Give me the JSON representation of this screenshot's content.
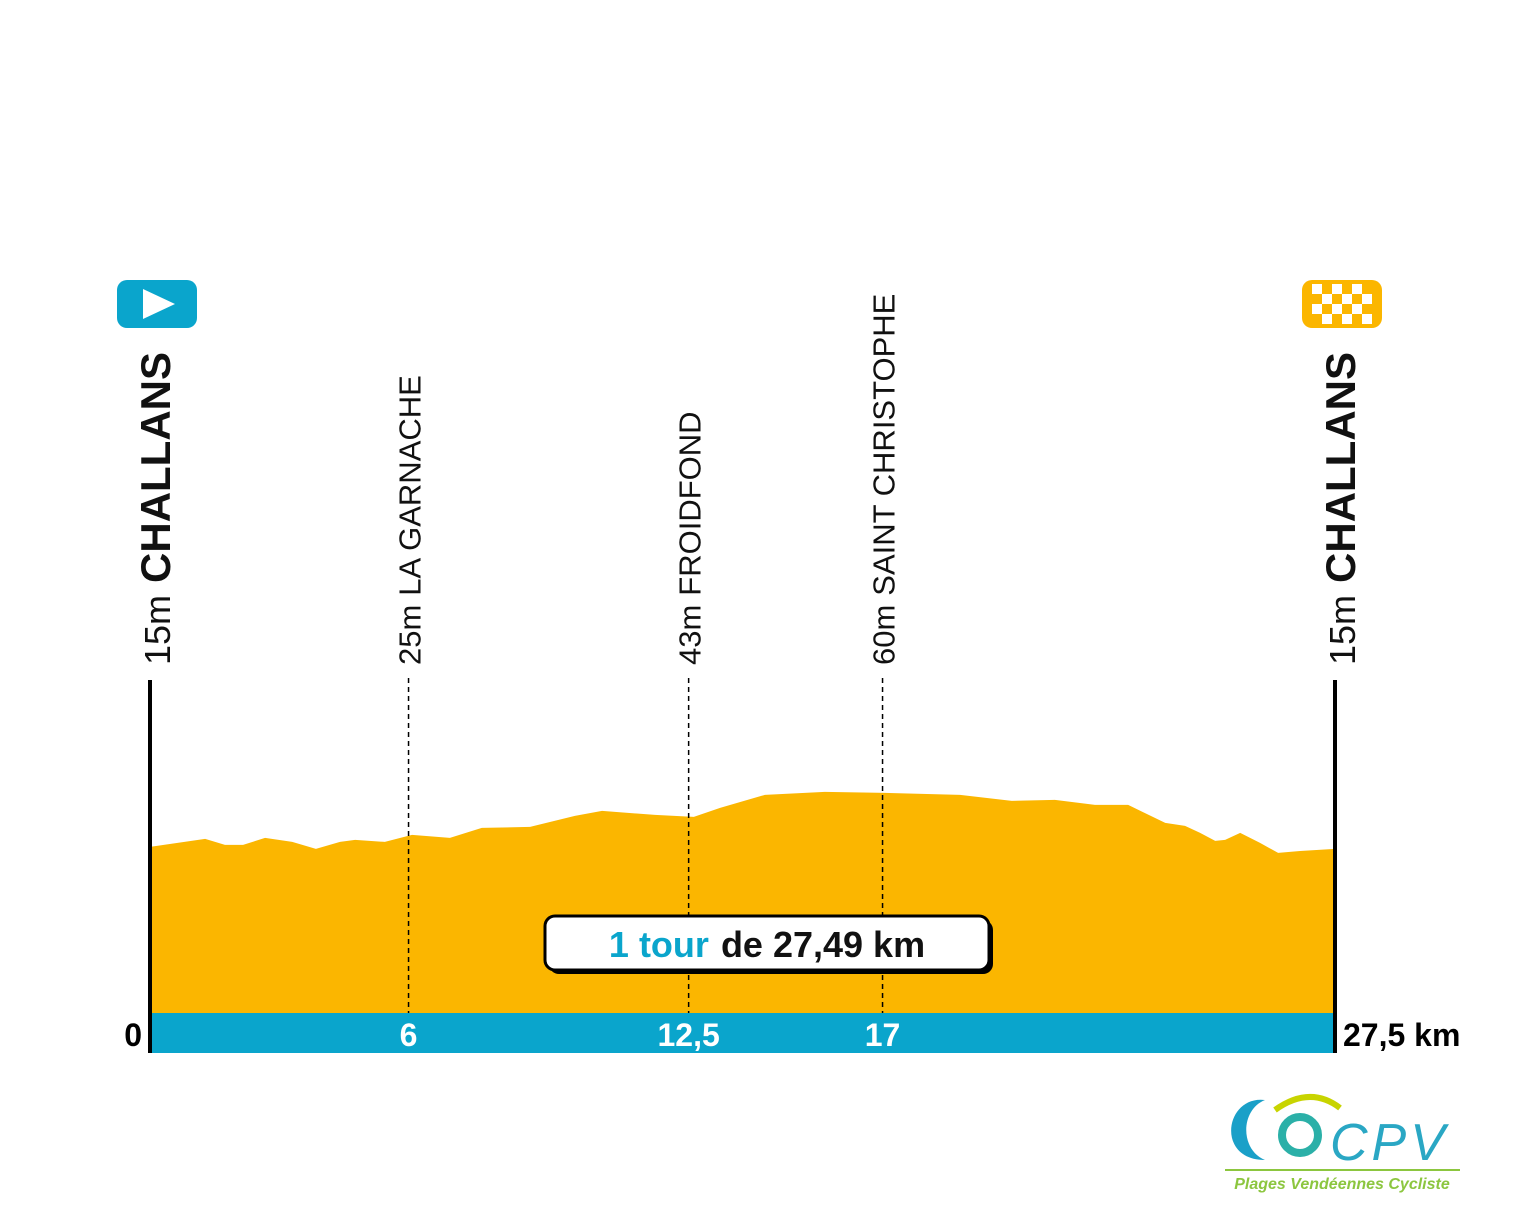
{
  "chart_data": {
    "type": "area",
    "xlim": [
      0,
      27.5
    ],
    "ylim": [
      -130,
      170
    ],
    "color": "#fbb600",
    "bar_color": "#0aa5cc",
    "x": [
      0,
      1.28,
      1.74,
      2.16,
      2.67,
      3.3,
      3.85,
      4.41,
      4.76,
      5.45,
      6.08,
      6.96,
      7.7,
      8.82,
      9.86,
      10.49,
      11.72,
      12.62,
      13.23,
      14.27,
      15.66,
      17.06,
      18.8,
      20.0,
      21.0,
      21.93,
      22.7,
      23.56,
      24.02,
      24.37,
      24.72,
      24.95,
      25.3,
      25.76,
      26.18,
      26.69,
      27.5
    ],
    "values": [
      13.6,
      20.5,
      15.3,
      15.3,
      21.4,
      17.9,
      11.9,
      17.9,
      19.7,
      17.9,
      24.0,
      21.4,
      30.0,
      30.9,
      40.4,
      44.7,
      41.3,
      39.6,
      47.3,
      58.6,
      61.2,
      60.3,
      58.6,
      53.4,
      54.3,
      49.9,
      49.9,
      34.4,
      31.8,
      25.7,
      18.8,
      19.7,
      25.7,
      17.1,
      8.4,
      10.1,
      11.9
    ],
    "waypoints": [
      {
        "km": 0,
        "elevation_label": "15m",
        "name": "CHALLANS"
      },
      {
        "km": 6,
        "elevation_label": "25m",
        "name": "LA GARNACHE"
      },
      {
        "km": {
          "value": 12.5,
          "label": "12,5"
        },
        "elevation_label": "43m",
        "name": "FROIDFOND"
      },
      {
        "km": 17,
        "elevation_label": "60m",
        "name": "SAINT CHRISTOPHE"
      },
      {
        "km": {
          "value": 27.5,
          "label": "27,5 km"
        },
        "elevation_label": "15m",
        "name": "CHALLANS"
      }
    ],
    "distance_note": {
      "highlight": "1 tour",
      "text": "de 27,49 km"
    },
    "logo": {
      "letters": "CPV",
      "tagline": "Plages Vendéennes Cycliste"
    }
  }
}
